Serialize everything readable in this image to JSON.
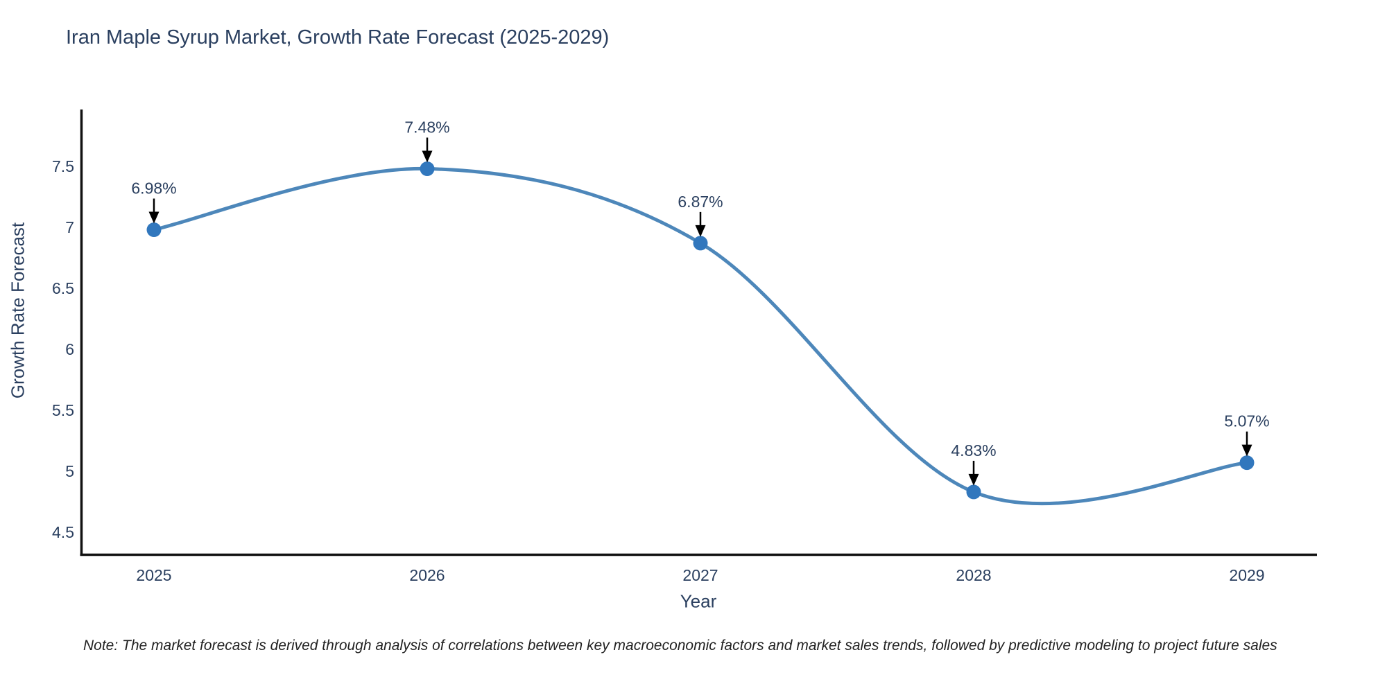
{
  "title": "Iran Maple Syrup Market, Growth Rate Forecast (2025-2029)",
  "note": "Note: The market forecast is derived through analysis of correlations between key macroeconomic factors and market sales trends, followed by predictive modeling to project future sales",
  "chart_data": {
    "type": "line",
    "title": "Iran Maple Syrup Market, Growth Rate Forecast (2025-2029)",
    "xlabel": "Year",
    "ylabel": "Growth Rate Forecast",
    "x": [
      2025,
      2026,
      2027,
      2028,
      2029
    ],
    "series": [
      {
        "name": "Growth Rate Forecast",
        "values": [
          6.98,
          7.48,
          6.87,
          4.83,
          5.07
        ],
        "point_labels": [
          "6.98%",
          "7.48%",
          "6.87%",
          "4.83%",
          "5.07%"
        ]
      }
    ],
    "x_tick_labels": [
      "2025",
      "2026",
      "2027",
      "2028",
      "2029"
    ],
    "y_tick_labels": [
      "7.5",
      "7",
      "6.5",
      "6",
      "5.5",
      "5",
      "4.5"
    ],
    "y_ticks": [
      7.5,
      7,
      6.5,
      6,
      5.5,
      5,
      4.5
    ],
    "ylim": [
      4.3,
      8.0
    ],
    "line_shape": "spline",
    "grid": false,
    "legend": "none",
    "colors": {
      "line": "#4d87ba",
      "marker": "#3177bd",
      "text": "#2a3f5f",
      "axis_line": "#111111",
      "arrow": "#000000",
      "note_text": "#222222",
      "background": "#ffffff"
    }
  }
}
